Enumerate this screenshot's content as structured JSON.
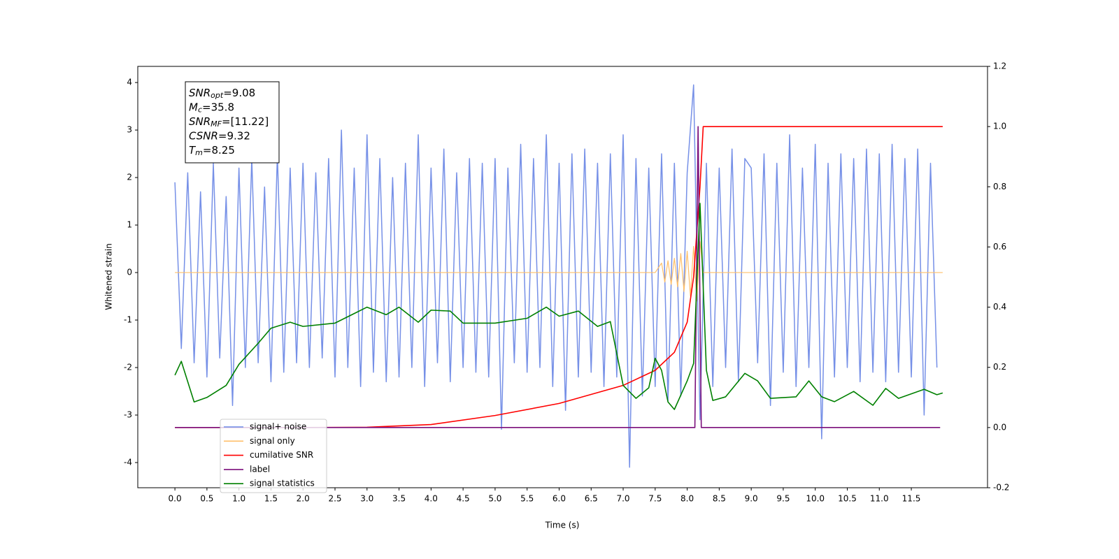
{
  "chart_data": {
    "type": "line",
    "xlabel": "Time (s)",
    "ylabel": "Whitened strain",
    "xlim": [
      -0.58,
      12.69
    ],
    "ylim": [
      -4.53,
      4.34
    ],
    "y2lim": [
      -0.2,
      1.2
    ],
    "xticks": [
      {
        "value": 0,
        "label": "0.0"
      },
      0.5,
      {
        "value": 1,
        "label": "1.0"
      },
      1.5,
      {
        "value": 2,
        "label": "2.0"
      },
      2.5,
      {
        "value": 3,
        "label": "3.0"
      },
      3.5,
      {
        "value": 4,
        "label": "4.0"
      },
      4.5,
      {
        "value": 5,
        "label": "5.0"
      },
      5.5,
      {
        "value": 6,
        "label": "6.0"
      },
      6.5,
      {
        "value": 7,
        "label": "7.0"
      },
      7.5,
      {
        "value": 8,
        "label": "8.0"
      },
      8.5,
      {
        "value": 9,
        "label": "9.0"
      },
      9.5,
      {
        "value": 10,
        "label": "10.0"
      },
      10.5,
      {
        "value": 11,
        "label": "11.0"
      },
      11.5
    ],
    "yticks": [
      -4,
      -3,
      -2,
      -1,
      0,
      1,
      2,
      3,
      4
    ],
    "y2ticks": [
      -0.2,
      {
        "value": 0,
        "label": "0.0"
      },
      0.2,
      0.4,
      0.6,
      0.8,
      {
        "value": 1,
        "label": "1.0"
      },
      1.2
    ],
    "legend": "lower left",
    "annotation": [
      {
        "main": "SNR",
        "sub": "opt",
        "rest": "=9.08"
      },
      {
        "main": "M",
        "sub": "c",
        "rest": "=35.8"
      },
      {
        "main": "SNR",
        "sub": "MF",
        "rest": "=[11.22]"
      },
      {
        "main": "CSNR",
        "sub": null,
        "rest": "=9.32"
      },
      {
        "main": "T",
        "sub": "m",
        "rest": "=8.25"
      }
    ],
    "series": [
      {
        "name": "signal+ noise",
        "color": "#6f8ae6",
        "axis": "y",
        "x": [
          0,
          0.1,
          0.2,
          0.3,
          0.4,
          0.5,
          0.6,
          0.7,
          0.8,
          0.9,
          1,
          1.1,
          1.2,
          1.3,
          1.4,
          1.5,
          1.6,
          1.7,
          1.8,
          1.9,
          2,
          2.1,
          2.2,
          2.3,
          2.4,
          2.5,
          2.6,
          2.7,
          2.8,
          2.9,
          3,
          3.1,
          3.2,
          3.3,
          3.4,
          3.5,
          3.6,
          3.7,
          3.8,
          3.9,
          4,
          4.1,
          4.2,
          4.3,
          4.4,
          4.5,
          4.6,
          4.7,
          4.8,
          4.9,
          5,
          5.1,
          5.2,
          5.3,
          5.4,
          5.5,
          5.6,
          5.7,
          5.8,
          5.9,
          6,
          6.1,
          6.2,
          6.3,
          6.4,
          6.5,
          6.6,
          6.7,
          6.8,
          6.9,
          7,
          7.1,
          7.2,
          7.3,
          7.4,
          7.5,
          7.6,
          7.7,
          7.8,
          7.9,
          8,
          8.1,
          8.2,
          8.3,
          8.4,
          8.5,
          8.6,
          8.7,
          8.8,
          8.9,
          9,
          9.1,
          9.2,
          9.3,
          9.4,
          9.5,
          9.6,
          9.7,
          9.8,
          9.9,
          10,
          10.1,
          10.2,
          10.3,
          10.4,
          10.5,
          10.6,
          10.7,
          10.8,
          10.9,
          11,
          11.1,
          11.2,
          11.3,
          11.4,
          11.5,
          11.6,
          11.7,
          11.8,
          11.9
        ],
        "values": [
          1.9,
          -1.6,
          2.1,
          -1.9,
          1.7,
          -2.2,
          2.3,
          -1.8,
          1.6,
          -2.8,
          2.2,
          -2.0,
          2.4,
          -1.9,
          1.8,
          -2.3,
          2.5,
          -2.1,
          2.2,
          -1.9,
          2.3,
          -2.0,
          2.1,
          -1.8,
          2.4,
          -2.2,
          3.0,
          -2.0,
          2.2,
          -2.4,
          2.9,
          -2.1,
          2.4,
          -2.3,
          2.0,
          -2.2,
          2.3,
          -2.0,
          2.9,
          -2.4,
          2.2,
          -1.9,
          2.6,
          -2.3,
          2.1,
          -2.0,
          2.4,
          -2.1,
          2.3,
          -2.2,
          2.4,
          -3.3,
          2.2,
          -1.9,
          2.7,
          -2.1,
          2.4,
          -2.0,
          2.9,
          -2.4,
          2.3,
          -2.9,
          2.5,
          -2.2,
          2.6,
          -2.1,
          2.3,
          -2.4,
          2.5,
          -2.2,
          2.9,
          -4.1,
          2.4,
          -2.6,
          2.2,
          -2.4,
          2.5,
          -2.7,
          2.3,
          -2.6,
          2.1,
          3.95,
          -3.1,
          2.3,
          -2.4,
          2.2,
          -2.0,
          2.6,
          -2.3,
          2.4,
          2.2,
          -1.9,
          2.5,
          -2.8,
          2.3,
          -2.1,
          2.9,
          -2.4,
          2.2,
          -2.0,
          2.7,
          -3.5,
          2.3,
          -2.2,
          2.5,
          -2.0,
          2.4,
          -2.3,
          2.6,
          -2.1,
          2.5,
          -2.3,
          2.7,
          -2.1,
          2.4,
          -2.2,
          2.6,
          -3.0,
          2.3,
          -2.0
        ]
      },
      {
        "name": "signal only",
        "color": "#ffbf69",
        "axis": "y",
        "x": [
          0,
          1,
          2,
          3,
          4,
          5,
          6,
          7,
          7.5,
          7.6,
          7.65,
          7.7,
          7.75,
          7.8,
          7.85,
          7.9,
          7.95,
          8,
          8.05,
          8.1,
          8.15,
          8.2,
          8.25,
          9,
          10,
          11,
          11.99
        ],
        "values": [
          0,
          0,
          0,
          0,
          0,
          0,
          0,
          0,
          0,
          0.2,
          -0.2,
          0.25,
          -0.25,
          0.3,
          -0.3,
          0.4,
          -0.4,
          0.45,
          -0.5,
          0.55,
          -0.6,
          0.65,
          0,
          0,
          0,
          0,
          0
        ]
      },
      {
        "name": "cumilative SNR",
        "color": "#ff0000",
        "axis": "y2",
        "x": [
          0,
          2,
          3,
          4,
          5,
          6,
          7,
          7.5,
          7.8,
          8,
          8.1,
          8.2,
          8.25,
          11.99
        ],
        "values": [
          0,
          0,
          0.001,
          0.01,
          0.04,
          0.08,
          0.14,
          0.19,
          0.25,
          0.35,
          0.5,
          0.8,
          1,
          1
        ]
      },
      {
        "name": "label",
        "color": "#7b0f7b",
        "axis": "y2",
        "x": [
          0,
          8.12,
          8.17,
          8.22,
          11.95
        ],
        "values": [
          0,
          0,
          1,
          0,
          0
        ]
      },
      {
        "name": "signal statistics",
        "color": "#008000",
        "axis": "y2",
        "x": [
          0,
          0.1,
          0.3,
          0.5,
          0.8,
          1,
          1.3,
          1.5,
          1.8,
          2,
          2.5,
          3,
          3.3,
          3.5,
          3.8,
          4,
          4.3,
          4.5,
          5,
          5.5,
          5.8,
          6,
          6.3,
          6.6,
          6.8,
          7,
          7.2,
          7.4,
          7.5,
          7.6,
          7.7,
          7.8,
          8,
          8.1,
          8.2,
          8.3,
          8.4,
          8.6,
          8.9,
          9.1,
          9.3,
          9.7,
          9.9,
          10.1,
          10.3,
          10.6,
          10.9,
          11.1,
          11.3,
          11.7,
          11.9,
          11.99
        ],
        "values": [
          0.174,
          0.22,
          0.085,
          0.1,
          0.14,
          0.21,
          0.28,
          0.33,
          0.35,
          0.336,
          0.347,
          0.4,
          0.375,
          0.4,
          0.35,
          0.39,
          0.387,
          0.347,
          0.347,
          0.363,
          0.4,
          0.37,
          0.387,
          0.336,
          0.352,
          0.14,
          0.097,
          0.132,
          0.23,
          0.19,
          0.085,
          0.06,
          0.155,
          0.213,
          0.745,
          0.19,
          0.09,
          0.102,
          0.18,
          0.155,
          0.097,
          0.102,
          0.155,
          0.102,
          0.086,
          0.12,
          0.074,
          0.13,
          0.097,
          0.127,
          0.109,
          0.115
        ]
      }
    ]
  }
}
